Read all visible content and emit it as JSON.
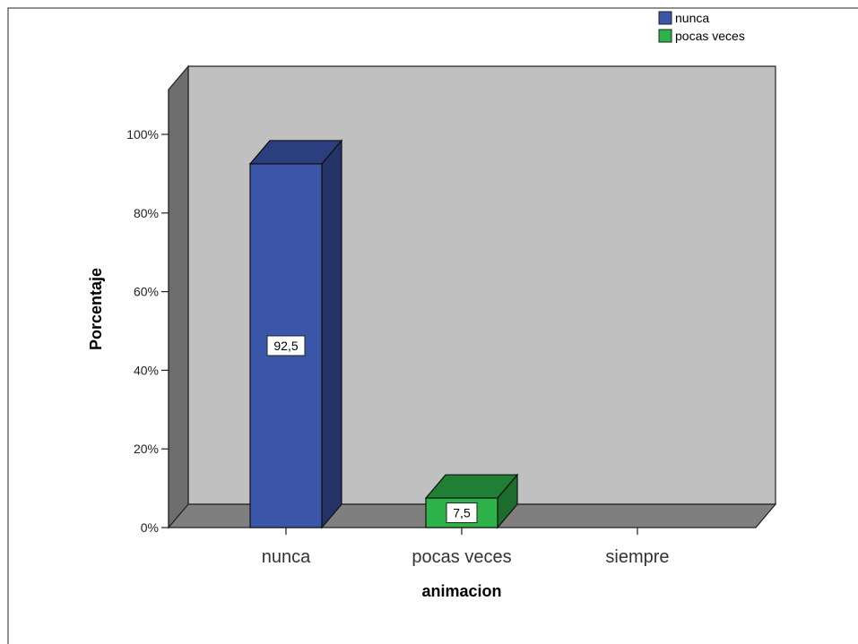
{
  "chart_data": {
    "type": "bar",
    "title": "",
    "xlabel": "animacion",
    "ylabel": "Porcentaje",
    "ylim": [
      0,
      100
    ],
    "yticks": [
      "0%",
      "20%",
      "40%",
      "60%",
      "80%",
      "100%"
    ],
    "categories": [
      "nunca",
      "pocas veces",
      "siempre"
    ],
    "values": [
      92.5,
      7.5,
      null
    ],
    "data_labels": [
      "92,5",
      "7,5",
      ""
    ],
    "legend": {
      "position": "top-right",
      "entries": [
        {
          "label": "nunca",
          "color": "#3b56a8"
        },
        {
          "label": "pocas veces",
          "color": "#2db34a"
        }
      ]
    },
    "colors": {
      "bar_nunca": "#3b56a8",
      "bar_pocas": "#2db34a",
      "plot_back": "#c0c0c0",
      "plot_side": "#6e6e6e",
      "plot_floor": "#7f7f7f"
    },
    "grid": false,
    "style": "3d"
  }
}
